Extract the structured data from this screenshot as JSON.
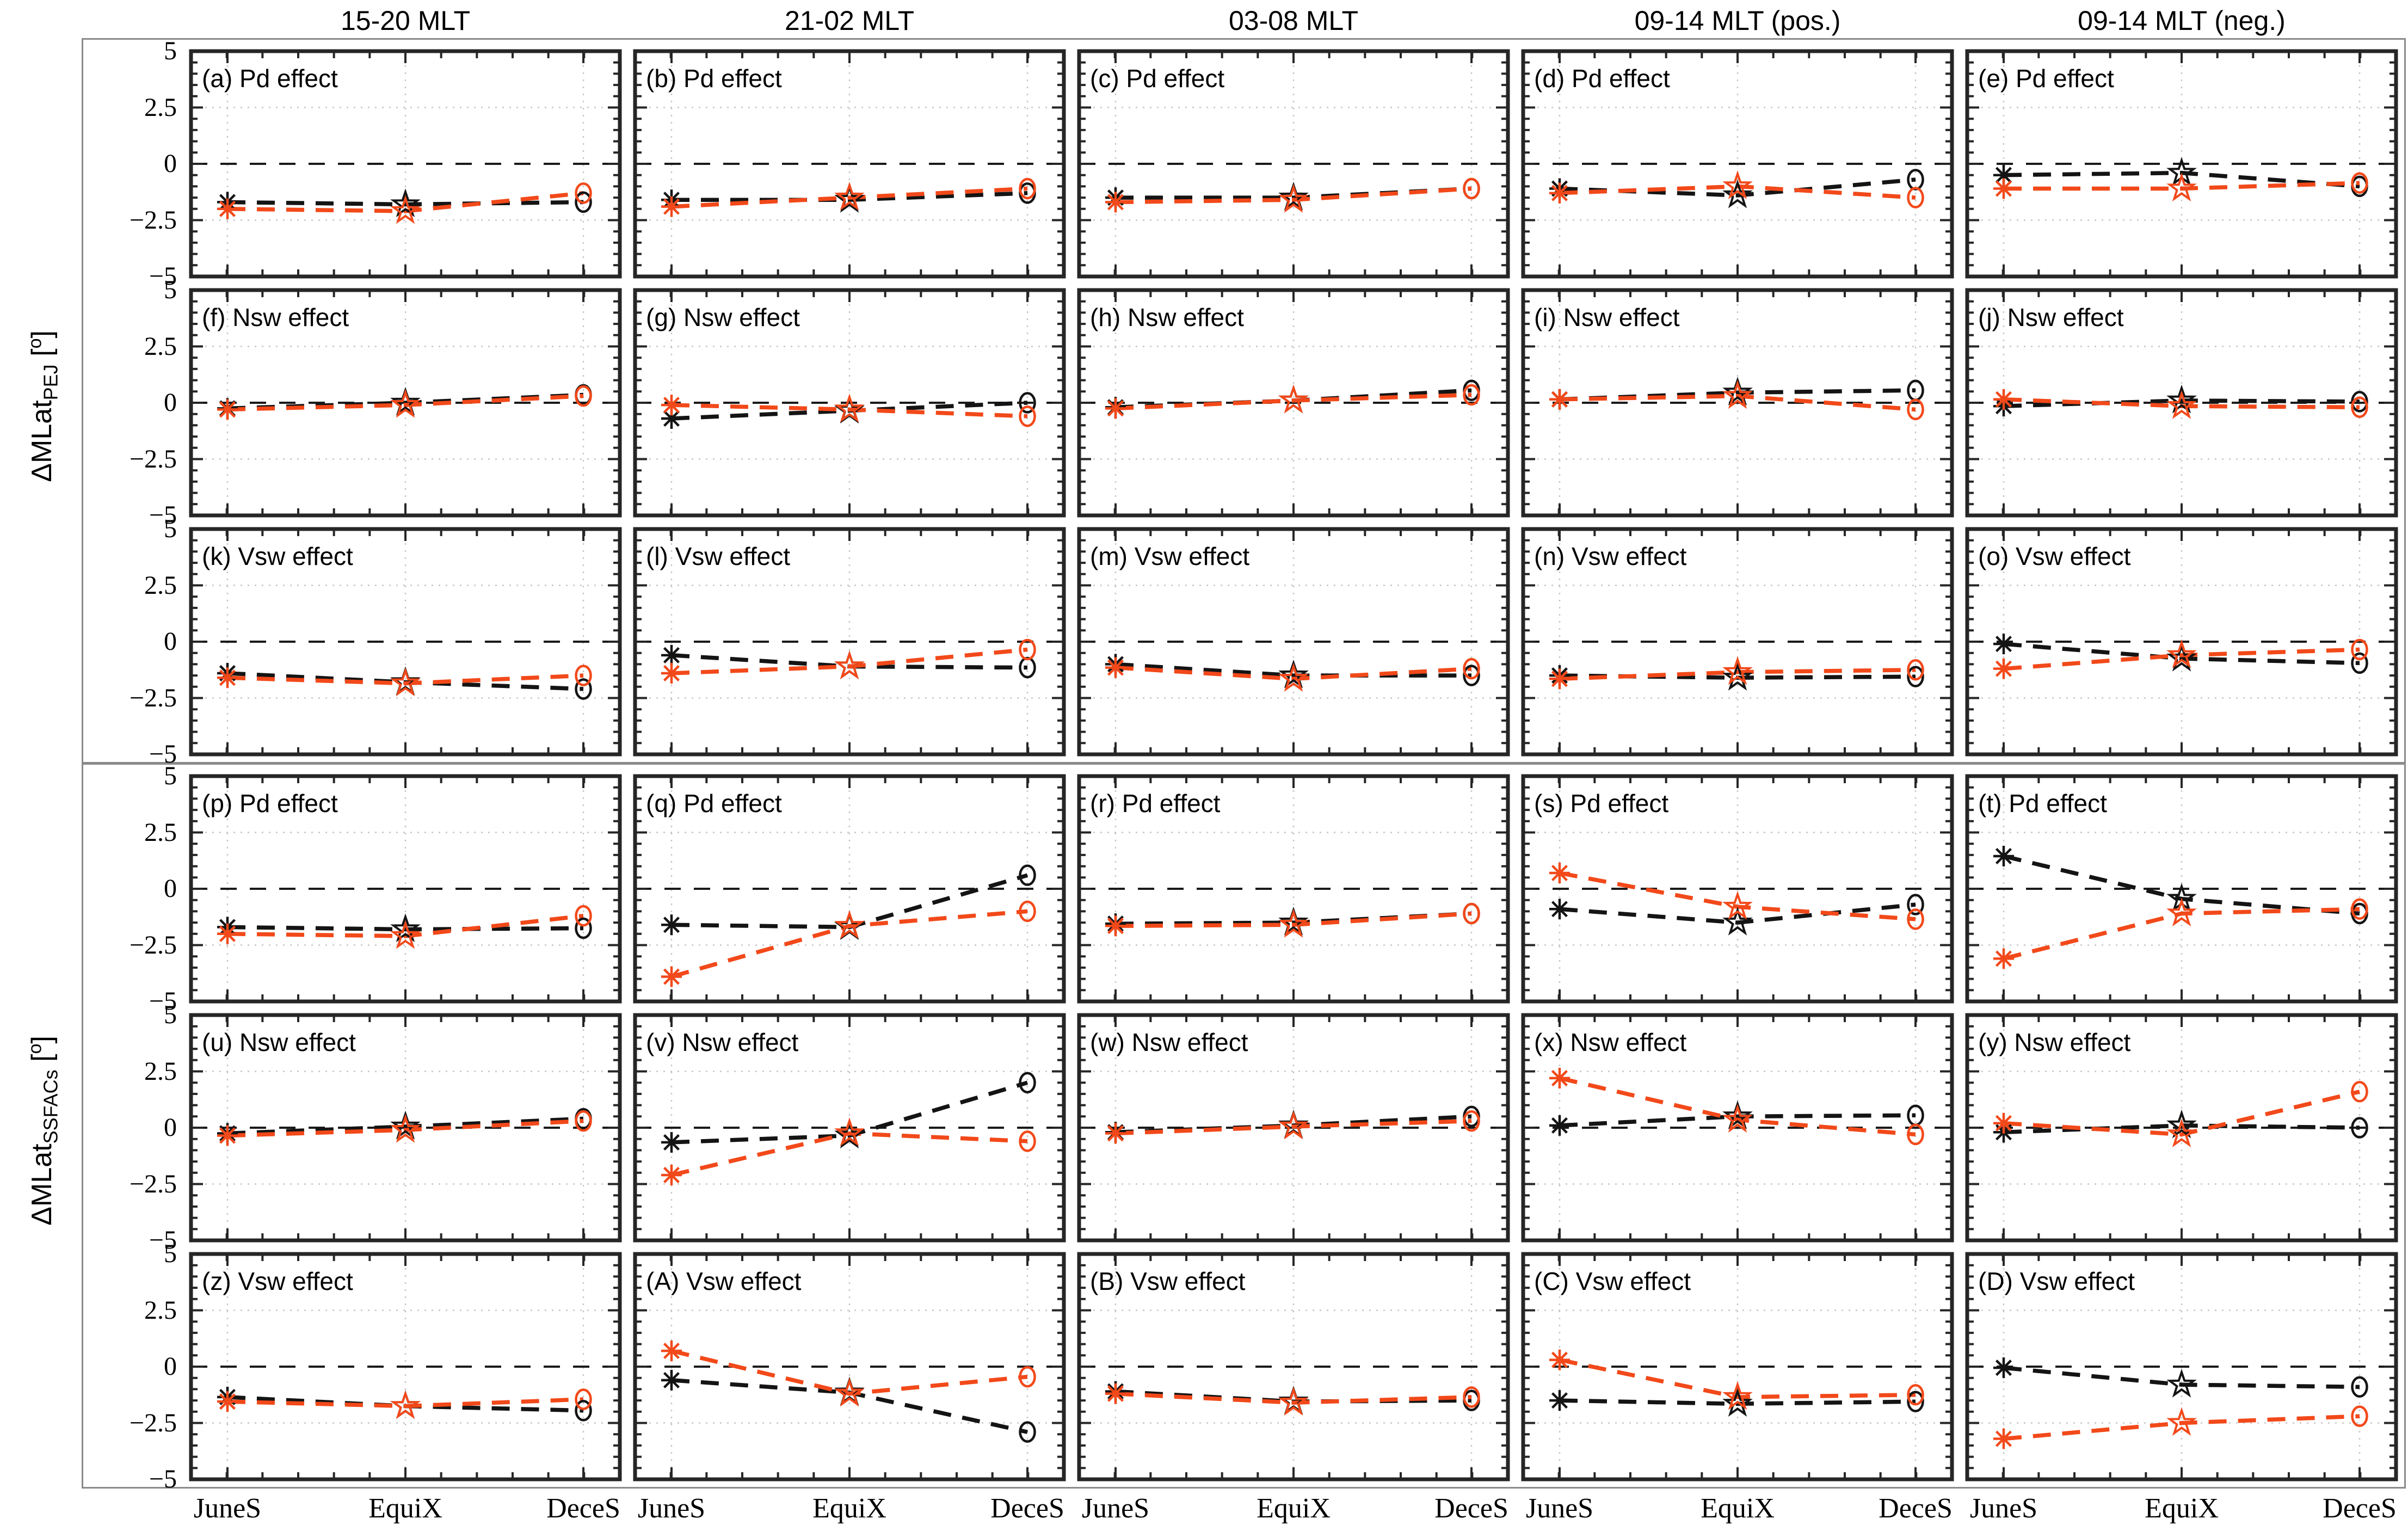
{
  "figure": {
    "columns": [
      "15-20 MLT",
      "21-02 MLT",
      "03-08 MLT",
      "09-14 MLT (pos.)",
      "09-14 MLT (neg.)"
    ],
    "x_categories": [
      "JuneS",
      "EquiX",
      "DeceS"
    ],
    "y_ticks": [
      "5",
      "2.5",
      "0",
      "−2.5",
      "−5"
    ],
    "group1_label": {
      "prefix": "ΔMLat",
      "sub": "PEJ",
      "bracket_open": " [",
      "degree": "o",
      "bracket_close": "]"
    },
    "group2_label": {
      "prefix": "ΔMLat",
      "sub": "SSFACs",
      "bracket_open": " [",
      "degree": "o",
      "bracket_close": "]"
    },
    "colors": {
      "black_series": "#141414",
      "orange_series": "#f2491a",
      "zero_line": "#1a1a1a",
      "grid_dotted": "#c6c6c6",
      "panel_border": "#262626",
      "group_frame": "#8a8a8a"
    },
    "markers": {
      "JuneS": "asterisk",
      "EquiX": "open-star",
      "DeceS": "open-circle"
    }
  },
  "chart_data": {
    "type": "line",
    "categories": [
      "JuneS",
      "EquiX",
      "DeceS"
    ],
    "ylim": [
      -5,
      5
    ],
    "yticks": [
      5,
      2.5,
      0,
      -2.5,
      -5
    ],
    "grid": "dotted vertical at categories, dotted horizontal at +/-2.5, dashed zero line",
    "legend": "none (black = series 1, orange = series 2)",
    "panels": [
      {
        "id": "a",
        "label": "(a) Pd effect",
        "group": "PEJ",
        "column": "15-20 MLT",
        "row": 0,
        "col": 0,
        "series": [
          {
            "name": "black",
            "values": [
              -1.7,
              -1.8,
              -1.7
            ]
          },
          {
            "name": "orange",
            "values": [
              -2.0,
              -2.1,
              -1.3
            ]
          }
        ]
      },
      {
        "id": "b",
        "label": "(b) Pd effect",
        "group": "PEJ",
        "column": "21-02 MLT",
        "row": 0,
        "col": 1,
        "series": [
          {
            "name": "black",
            "values": [
              -1.6,
              -1.6,
              -1.3
            ]
          },
          {
            "name": "orange",
            "values": [
              -1.9,
              -1.5,
              -1.1
            ]
          }
        ]
      },
      {
        "id": "c",
        "label": "(c) Pd effect",
        "group": "PEJ",
        "column": "03-08 MLT",
        "row": 0,
        "col": 2,
        "series": [
          {
            "name": "black",
            "values": [
              -1.5,
              -1.5,
              -1.1
            ]
          },
          {
            "name": "orange",
            "values": [
              -1.7,
              -1.6,
              -1.1
            ]
          }
        ]
      },
      {
        "id": "d",
        "label": "(d) Pd effect",
        "group": "PEJ",
        "column": "09-14 MLT (pos.)",
        "row": 0,
        "col": 3,
        "series": [
          {
            "name": "black",
            "values": [
              -1.1,
              -1.4,
              -0.7
            ]
          },
          {
            "name": "orange",
            "values": [
              -1.3,
              -1.0,
              -1.5
            ]
          }
        ]
      },
      {
        "id": "e",
        "label": "(e) Pd effect",
        "group": "PEJ",
        "column": "09-14 MLT (neg.)",
        "row": 0,
        "col": 4,
        "series": [
          {
            "name": "black",
            "values": [
              -0.5,
              -0.4,
              -1.0
            ]
          },
          {
            "name": "orange",
            "values": [
              -1.1,
              -1.1,
              -0.85
            ]
          }
        ]
      },
      {
        "id": "f",
        "label": "(f) Nsw effect",
        "group": "PEJ",
        "column": "15-20 MLT",
        "row": 1,
        "col": 0,
        "series": [
          {
            "name": "black",
            "values": [
              -0.25,
              0.0,
              0.35
            ]
          },
          {
            "name": "orange",
            "values": [
              -0.3,
              -0.1,
              0.3
            ]
          }
        ]
      },
      {
        "id": "g",
        "label": "(g) Nsw effect",
        "group": "PEJ",
        "column": "21-02 MLT",
        "row": 1,
        "col": 1,
        "series": [
          {
            "name": "black",
            "values": [
              -0.7,
              -0.35,
              0.0
            ]
          },
          {
            "name": "orange",
            "values": [
              -0.1,
              -0.3,
              -0.6
            ]
          }
        ]
      },
      {
        "id": "h",
        "label": "(h) Nsw effect",
        "group": "PEJ",
        "column": "03-08 MLT",
        "row": 1,
        "col": 2,
        "series": [
          {
            "name": "black",
            "values": [
              -0.2,
              0.1,
              0.55
            ]
          },
          {
            "name": "orange",
            "values": [
              -0.25,
              0.1,
              0.35
            ]
          }
        ]
      },
      {
        "id": "i",
        "label": "(i) Nsw effect",
        "group": "PEJ",
        "column": "09-14 MLT (pos.)",
        "row": 1,
        "col": 3,
        "series": [
          {
            "name": "black",
            "values": [
              0.15,
              0.45,
              0.55
            ]
          },
          {
            "name": "orange",
            "values": [
              0.15,
              0.3,
              -0.3
            ]
          }
        ]
      },
      {
        "id": "j",
        "label": "(j) Nsw effect",
        "group": "PEJ",
        "column": "09-14 MLT (neg.)",
        "row": 1,
        "col": 4,
        "series": [
          {
            "name": "black",
            "values": [
              -0.15,
              0.1,
              0.05
            ]
          },
          {
            "name": "orange",
            "values": [
              0.15,
              -0.15,
              -0.2
            ]
          }
        ]
      },
      {
        "id": "k",
        "label": "(k) Vsw effect",
        "group": "PEJ",
        "column": "15-20 MLT",
        "row": 2,
        "col": 0,
        "series": [
          {
            "name": "black",
            "values": [
              -1.4,
              -1.8,
              -2.1
            ]
          },
          {
            "name": "orange",
            "values": [
              -1.6,
              -1.85,
              -1.5
            ]
          }
        ]
      },
      {
        "id": "l",
        "label": "(l) Vsw effect",
        "group": "PEJ",
        "column": "21-02 MLT",
        "row": 2,
        "col": 1,
        "series": [
          {
            "name": "black",
            "values": [
              -0.6,
              -1.1,
              -1.15
            ]
          },
          {
            "name": "orange",
            "values": [
              -1.4,
              -1.1,
              -0.35
            ]
          }
        ]
      },
      {
        "id": "m",
        "label": "(m) Vsw effect",
        "group": "PEJ",
        "column": "03-08 MLT",
        "row": 2,
        "col": 2,
        "series": [
          {
            "name": "black",
            "values": [
              -1.0,
              -1.5,
              -1.5
            ]
          },
          {
            "name": "orange",
            "values": [
              -1.15,
              -1.65,
              -1.2
            ]
          }
        ]
      },
      {
        "id": "n",
        "label": "(n) Vsw effect",
        "group": "PEJ",
        "column": "09-14 MLT (pos.)",
        "row": 2,
        "col": 3,
        "series": [
          {
            "name": "black",
            "values": [
              -1.5,
              -1.6,
              -1.55
            ]
          },
          {
            "name": "orange",
            "values": [
              -1.65,
              -1.35,
              -1.25
            ]
          }
        ]
      },
      {
        "id": "o",
        "label": "(o) Vsw effect",
        "group": "PEJ",
        "column": "09-14 MLT (neg.)",
        "row": 2,
        "col": 4,
        "series": [
          {
            "name": "black",
            "values": [
              -0.1,
              -0.75,
              -0.95
            ]
          },
          {
            "name": "orange",
            "values": [
              -1.2,
              -0.6,
              -0.35
            ]
          }
        ]
      },
      {
        "id": "p",
        "label": "(p) Pd effect",
        "group": "SSFACs",
        "column": "15-20 MLT",
        "row": 3,
        "col": 0,
        "series": [
          {
            "name": "black",
            "values": [
              -1.7,
              -1.8,
              -1.75
            ]
          },
          {
            "name": "orange",
            "values": [
              -2.0,
              -2.1,
              -1.2
            ]
          }
        ]
      },
      {
        "id": "q",
        "label": "(q) Pd effect",
        "group": "SSFACs",
        "column": "21-02 MLT",
        "row": 3,
        "col": 1,
        "series": [
          {
            "name": "black",
            "values": [
              -1.6,
              -1.7,
              0.6
            ]
          },
          {
            "name": "orange",
            "values": [
              -3.9,
              -1.65,
              -1.0
            ]
          }
        ]
      },
      {
        "id": "r",
        "label": "(r) Pd effect",
        "group": "SSFACs",
        "column": "03-08 MLT",
        "row": 3,
        "col": 2,
        "series": [
          {
            "name": "black",
            "values": [
              -1.55,
              -1.5,
              -1.1
            ]
          },
          {
            "name": "orange",
            "values": [
              -1.65,
              -1.6,
              -1.1
            ]
          }
        ]
      },
      {
        "id": "s",
        "label": "(s) Pd effect",
        "group": "SSFACs",
        "column": "09-14 MLT (pos.)",
        "row": 3,
        "col": 3,
        "series": [
          {
            "name": "black",
            "values": [
              -0.9,
              -1.5,
              -0.7
            ]
          },
          {
            "name": "orange",
            "values": [
              0.7,
              -0.8,
              -1.35
            ]
          }
        ]
      },
      {
        "id": "t",
        "label": "(t) Pd effect",
        "group": "SSFACs",
        "column": "09-14 MLT (neg.)",
        "row": 3,
        "col": 4,
        "series": [
          {
            "name": "black",
            "values": [
              1.45,
              -0.45,
              -1.1
            ]
          },
          {
            "name": "orange",
            "values": [
              -3.1,
              -1.1,
              -0.9
            ]
          }
        ]
      },
      {
        "id": "u",
        "label": "(u) Nsw effect",
        "group": "SSFACs",
        "column": "15-20 MLT",
        "row": 4,
        "col": 0,
        "series": [
          {
            "name": "black",
            "values": [
              -0.25,
              0.05,
              0.4
            ]
          },
          {
            "name": "orange",
            "values": [
              -0.35,
              -0.1,
              0.3
            ]
          }
        ]
      },
      {
        "id": "v",
        "label": "(v) Nsw effect",
        "group": "SSFACs",
        "column": "21-02 MLT",
        "row": 4,
        "col": 1,
        "series": [
          {
            "name": "black",
            "values": [
              -0.65,
              -0.35,
              2.0
            ]
          },
          {
            "name": "orange",
            "values": [
              -2.1,
              -0.25,
              -0.6
            ]
          }
        ]
      },
      {
        "id": "w",
        "label": "(w) Nsw effect",
        "group": "SSFACs",
        "column": "03-08 MLT",
        "row": 4,
        "col": 2,
        "series": [
          {
            "name": "black",
            "values": [
              -0.2,
              0.1,
              0.5
            ]
          },
          {
            "name": "orange",
            "values": [
              -0.25,
              0.05,
              0.3
            ]
          }
        ]
      },
      {
        "id": "x",
        "label": "(x) Nsw effect",
        "group": "SSFACs",
        "column": "09-14 MLT (pos.)",
        "row": 4,
        "col": 3,
        "series": [
          {
            "name": "black",
            "values": [
              0.1,
              0.5,
              0.55
            ]
          },
          {
            "name": "orange",
            "values": [
              2.2,
              0.35,
              -0.3
            ]
          }
        ]
      },
      {
        "id": "y",
        "label": "(y) Nsw effect",
        "group": "SSFACs",
        "column": "09-14 MLT (neg.)",
        "row": 4,
        "col": 4,
        "series": [
          {
            "name": "black",
            "values": [
              -0.2,
              0.1,
              0.0
            ]
          },
          {
            "name": "orange",
            "values": [
              0.2,
              -0.3,
              1.6
            ]
          }
        ]
      },
      {
        "id": "z",
        "label": "(z) Vsw effect",
        "group": "SSFACs",
        "column": "15-20 MLT",
        "row": 5,
        "col": 0,
        "series": [
          {
            "name": "black",
            "values": [
              -1.35,
              -1.75,
              -1.95
            ]
          },
          {
            "name": "orange",
            "values": [
              -1.55,
              -1.75,
              -1.45
            ]
          }
        ]
      },
      {
        "id": "A",
        "label": "(A) Vsw effect",
        "group": "SSFACs",
        "column": "21-02 MLT",
        "row": 5,
        "col": 1,
        "series": [
          {
            "name": "black",
            "values": [
              -0.6,
              -1.15,
              -2.9
            ]
          },
          {
            "name": "orange",
            "values": [
              0.7,
              -1.2,
              -0.45
            ]
          }
        ]
      },
      {
        "id": "B",
        "label": "(B) Vsw effect",
        "group": "SSFACs",
        "column": "03-08 MLT",
        "row": 5,
        "col": 2,
        "series": [
          {
            "name": "black",
            "values": [
              -1.1,
              -1.55,
              -1.5
            ]
          },
          {
            "name": "orange",
            "values": [
              -1.2,
              -1.6,
              -1.35
            ]
          }
        ]
      },
      {
        "id": "C",
        "label": "(C) Vsw effect",
        "group": "SSFACs",
        "column": "09-14 MLT (pos.)",
        "row": 5,
        "col": 3,
        "series": [
          {
            "name": "black",
            "values": [
              -1.5,
              -1.65,
              -1.55
            ]
          },
          {
            "name": "orange",
            "values": [
              0.3,
              -1.35,
              -1.25
            ]
          }
        ]
      },
      {
        "id": "D",
        "label": "(D) Vsw effect",
        "group": "SSFACs",
        "column": "09-14 MLT (neg.)",
        "row": 5,
        "col": 4,
        "series": [
          {
            "name": "black",
            "values": [
              -0.05,
              -0.8,
              -0.9
            ]
          },
          {
            "name": "orange",
            "values": [
              -3.2,
              -2.5,
              -2.2
            ]
          }
        ]
      }
    ]
  }
}
